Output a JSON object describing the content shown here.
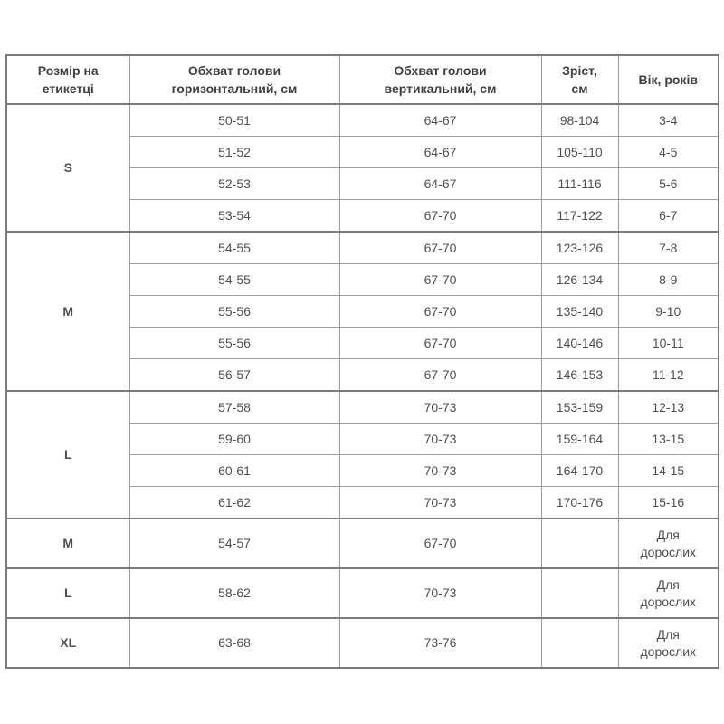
{
  "colors": {
    "background": "#ffffff",
    "border_inner": "#9c9c9c",
    "border_strong": "#7b7b7b",
    "text": "#4f4f4f",
    "header_text": "#3f3f3f"
  },
  "chart_data": {
    "type": "table",
    "columns": [
      "Розмір на етикетці",
      "Обхват голови горизонтальний, см",
      "Обхват голови вертикальний, см",
      "Зріст, см",
      "Вік, років"
    ],
    "row_groups": [
      {
        "label": "S",
        "adult": false,
        "rows": [
          [
            "50-51",
            "64-67",
            "98-104",
            "3-4"
          ],
          [
            "51-52",
            "64-67",
            "105-110",
            "4-5"
          ],
          [
            "52-53",
            "64-67",
            "111-116",
            "5-6"
          ],
          [
            "53-54",
            "67-70",
            "117-122",
            "6-7"
          ]
        ]
      },
      {
        "label": "M",
        "adult": false,
        "rows": [
          [
            "54-55",
            "67-70",
            "123-126",
            "7-8"
          ],
          [
            "54-55",
            "67-70",
            "126-134",
            "8-9"
          ],
          [
            "55-56",
            "67-70",
            "135-140",
            "9-10"
          ],
          [
            "55-56",
            "67-70",
            "140-146",
            "10-11"
          ],
          [
            "56-57",
            "67-70",
            "146-153",
            "11-12"
          ]
        ]
      },
      {
        "label": "L",
        "adult": false,
        "rows": [
          [
            "57-58",
            "70-73",
            "153-159",
            "12-13"
          ],
          [
            "59-60",
            "70-73",
            "159-164",
            "13-15"
          ],
          [
            "60-61",
            "70-73",
            "164-170",
            "14-15"
          ],
          [
            "61-62",
            "70-73",
            "170-176",
            "15-16"
          ]
        ]
      },
      {
        "label": "M",
        "adult": true,
        "rows": [
          [
            "54-57",
            "67-70",
            "",
            "Для дорослих"
          ]
        ]
      },
      {
        "label": "L",
        "adult": true,
        "rows": [
          [
            "58-62",
            "70-73",
            "",
            "Для дорослих"
          ]
        ]
      },
      {
        "label": "XL",
        "adult": true,
        "rows": [
          [
            "63-68",
            "73-76",
            "",
            "Для дорослих"
          ]
        ]
      }
    ]
  }
}
